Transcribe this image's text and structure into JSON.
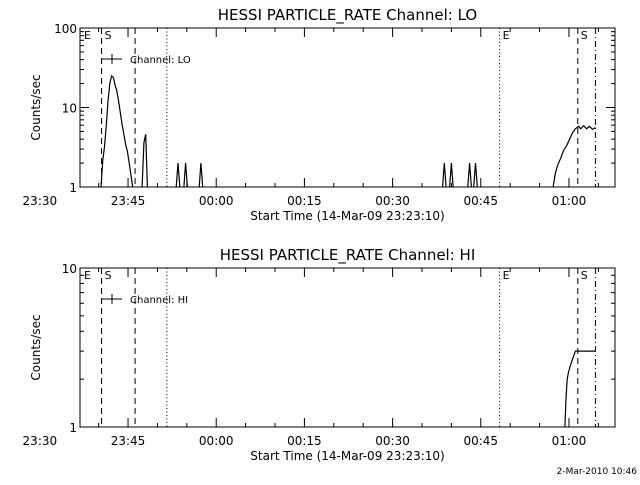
{
  "footer": {
    "timestamp": "2-Mar-2010 10:46"
  },
  "chart_data": [
    {
      "type": "line",
      "title": "HESSI PARTICLE_RATE Channel: LO",
      "xlabel": "Start Time (14-Mar-09 23:23:10)",
      "ylabel": "Counts/sec",
      "yscale": "log",
      "ylim": [
        1,
        100
      ],
      "xlim_minutes": [
        -23.17,
        67.83
      ],
      "x_unit": "minutes after 00:00 (14/15-Mar-09)",
      "x_tick_labels": [
        "23:30",
        "23:45",
        "00:00",
        "00:15",
        "00:30",
        "00:45",
        "01:00"
      ],
      "y_tick_labels": [
        "1",
        "10",
        "100"
      ],
      "legend": {
        "label": "Channel: LO",
        "placement": "top-left"
      },
      "event_markers": [
        {
          "label": "E",
          "x": -23.0,
          "style": "none"
        },
        {
          "label": "S",
          "x": -19.5,
          "style": "dashed"
        },
        {
          "label": "",
          "x": -13.8,
          "style": "dashed"
        },
        {
          "label": "",
          "x": -8.4,
          "style": "dotted"
        },
        {
          "label": "E",
          "x": 48.2,
          "style": "dotted"
        },
        {
          "label": "S",
          "x": 61.5,
          "style": "dashed"
        },
        {
          "label": "",
          "x": 64.5,
          "style": "dashdot"
        }
      ],
      "series": [
        {
          "name": "Channel: LO",
          "segments": [
            {
              "x": [
                -19.6,
                -19.3,
                -19.0,
                -18.7,
                -18.4,
                -18.1,
                -17.8,
                -17.5,
                -17.2,
                -16.9,
                -16.6,
                -16.3,
                -16.0,
                -15.7,
                -15.4,
                -15.1,
                -14.8,
                -14.5,
                -14.2
              ],
              "y": [
                1,
                2.2,
                3.2,
                6,
                12,
                20,
                25,
                24,
                19,
                16,
                12,
                8.5,
                6,
                4.6,
                3.4,
                2.8,
                2.0,
                1.4,
                1
              ]
            },
            {
              "x": [
                -12.6,
                -12.3,
                -12.0,
                -11.7
              ],
              "y": [
                1,
                3.6,
                4.6,
                1
              ]
            },
            {
              "x": [
                -6.8,
                -6.5,
                -6.2
              ],
              "y": [
                1,
                2,
                1
              ]
            },
            {
              "x": [
                -5.5,
                -5.2,
                -4.9
              ],
              "y": [
                1,
                2,
                1
              ]
            },
            {
              "x": [
                -2.9,
                -2.6,
                -2.3
              ],
              "y": [
                1,
                2,
                1
              ]
            },
            {
              "x": [
                38.5,
                38.8,
                39.1
              ],
              "y": [
                1,
                2,
                1
              ]
            },
            {
              "x": [
                39.7,
                40.0,
                40.3
              ],
              "y": [
                1,
                2,
                1
              ]
            },
            {
              "x": [
                42.8,
                43.1,
                43.4
              ],
              "y": [
                1,
                2,
                1
              ]
            },
            {
              "x": [
                43.8,
                44.1,
                44.4
              ],
              "y": [
                1,
                2,
                1
              ]
            },
            {
              "x": [
                57.3,
                57.7,
                58.1,
                58.6,
                59.1,
                59.6,
                60.1,
                60.6,
                61.1,
                61.6,
                62.0,
                62.5,
                63.0,
                63.5,
                64.0,
                64.5
              ],
              "y": [
                1,
                1.5,
                1.9,
                2.3,
                2.9,
                3.3,
                4.0,
                4.8,
                5.4,
                5.8,
                5.4,
                5.9,
                5.4,
                5.8,
                5.3,
                5.6
              ]
            }
          ]
        }
      ]
    },
    {
      "type": "line",
      "title": "HESSI PARTICLE_RATE Channel: HI",
      "xlabel": "Start Time (14-Mar-09 23:23:10)",
      "ylabel": "Counts/sec",
      "yscale": "log",
      "ylim": [
        1,
        10
      ],
      "xlim_minutes": [
        -23.17,
        67.83
      ],
      "x_unit": "minutes after 00:00 (14/15-Mar-09)",
      "x_tick_labels": [
        "23:30",
        "23:45",
        "00:00",
        "00:15",
        "00:30",
        "00:45",
        "01:00"
      ],
      "y_tick_labels": [
        "1",
        "10"
      ],
      "legend": {
        "label": "Channel: HI",
        "placement": "top-left"
      },
      "event_markers": [
        {
          "label": "E",
          "x": -23.0,
          "style": "none"
        },
        {
          "label": "S",
          "x": -19.5,
          "style": "dashed"
        },
        {
          "label": "",
          "x": -13.8,
          "style": "dashed"
        },
        {
          "label": "",
          "x": -8.4,
          "style": "dotted"
        },
        {
          "label": "E",
          "x": 48.2,
          "style": "dotted"
        },
        {
          "label": "S",
          "x": 61.5,
          "style": "dashed"
        },
        {
          "label": "",
          "x": 64.5,
          "style": "dashdot"
        }
      ],
      "series": [
        {
          "name": "Channel: HI",
          "segments": [
            {
              "x": [
                59.3,
                59.5,
                59.7,
                59.9,
                60.2,
                60.5,
                60.8,
                61.1,
                61.4,
                61.7,
                62.0,
                62.5,
                63.0,
                63.5,
                64.0,
                64.5
              ],
              "y": [
                1,
                1.5,
                2.0,
                2.2,
                2.4,
                2.6,
                2.8,
                3.0,
                3.0,
                3.0,
                3.0,
                3.0,
                3.0,
                3.0,
                3.0,
                3.0
              ]
            }
          ]
        }
      ]
    }
  ]
}
